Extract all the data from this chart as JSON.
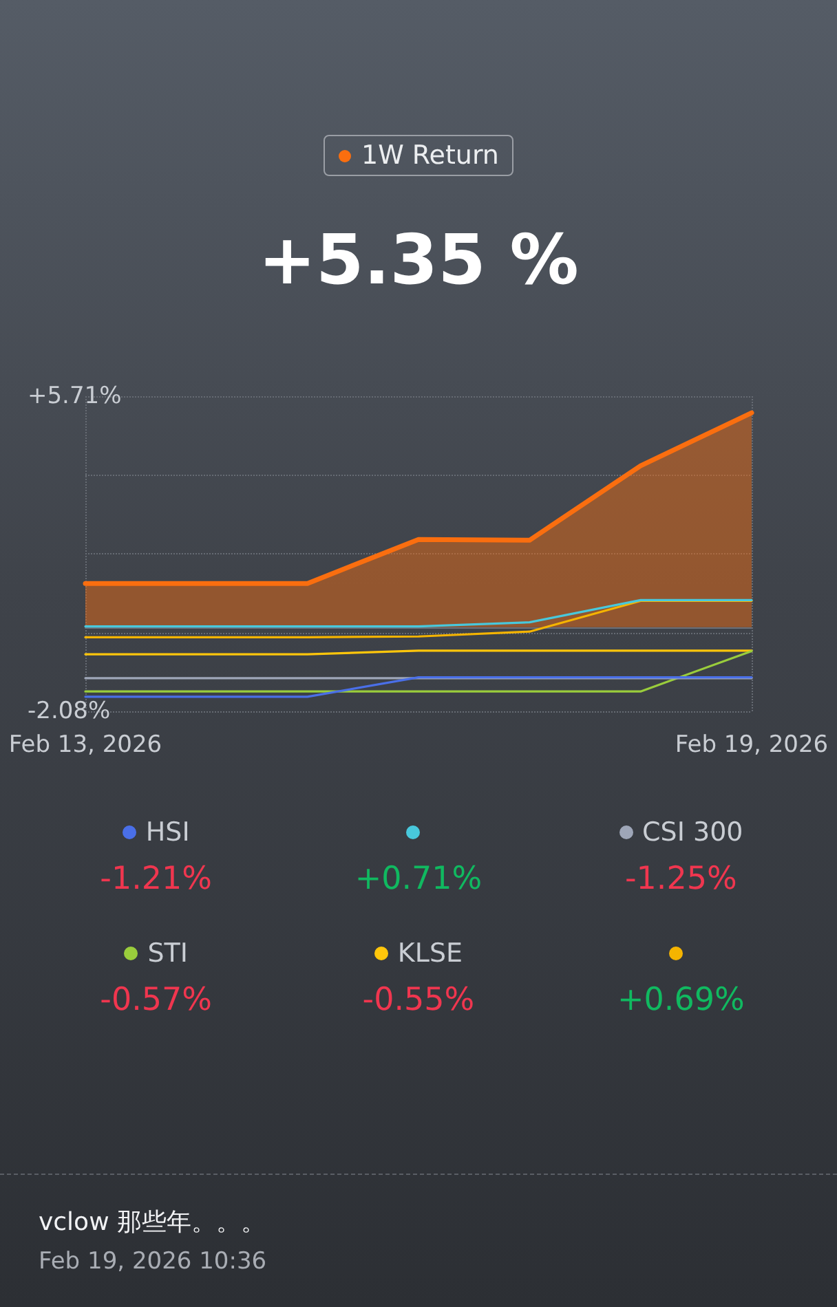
{
  "chart_data": {
    "type": "line",
    "title": "1W Return",
    "subtitle": "+5.35 %",
    "x": [
      "2026-02-13",
      "2026-02-14",
      "2026-02-15",
      "2026-02-16",
      "2026-02-17",
      "2026-02-18",
      "2026-02-19"
    ],
    "xlim": [
      "2026-02-13",
      "2026-02-19"
    ],
    "xticks": [
      {
        "value": "2026-02-13",
        "label": "Feb 13, 2026"
      },
      {
        "value": "2026-02-19",
        "label": "Feb 19, 2026"
      }
    ],
    "ylim": [
      -2.08,
      5.71
    ],
    "yticks": [
      {
        "value": -2.08,
        "label": "-2.08%"
      },
      {
        "value": -0.1325,
        "label": null
      },
      {
        "value": 1.815,
        "label": null
      },
      {
        "value": 3.7625,
        "label": null
      },
      {
        "value": 5.71,
        "label": "+5.71%"
      }
    ],
    "grid": true,
    "legend": "bottom",
    "marker": "none",
    "line_style": "solid",
    "series": [
      {
        "type": "area",
        "color": "#fa6e0f",
        "values": [
          1.08,
          1.08,
          1.08,
          2.17,
          2.15,
          3.99,
          5.3
        ]
      },
      {
        "name": "HSI",
        "color": "#4a6fe8",
        "values": [
          -1.72,
          -1.72,
          -1.72,
          -1.24,
          -1.24,
          -1.24,
          -1.24
        ]
      },
      {
        "color": "#48c8dc",
        "values": [
          0.02,
          0.02,
          0.02,
          0.02,
          0.12,
          0.67,
          0.67
        ]
      },
      {
        "name": "CSI 300",
        "color": "#9ea6b8",
        "values": [
          -1.26,
          -1.26,
          -1.26,
          -1.26,
          -1.26,
          -1.26,
          -1.26
        ]
      },
      {
        "name": "STI",
        "color": "#9acd3c",
        "values": [
          -1.59,
          -1.59,
          -1.59,
          -1.59,
          -1.59,
          -1.59,
          -0.59
        ]
      },
      {
        "name": "KLSE",
        "color": "#ffc60b",
        "values": [
          -0.67,
          -0.67,
          -0.67,
          -0.58,
          -0.58,
          -0.58,
          -0.58
        ]
      },
      {
        "color": "#f5b400",
        "values": [
          -0.25,
          -0.25,
          -0.25,
          -0.23,
          -0.11,
          0.65,
          0.65
        ]
      }
    ],
    "annotations": [
      "-1.21%",
      "+0.71%",
      "-1.25%",
      "-0.57%",
      "-0.55%",
      "+0.69%",
      "vclow 那些年。。。",
      "Feb 19, 2026 10:36"
    ]
  }
}
